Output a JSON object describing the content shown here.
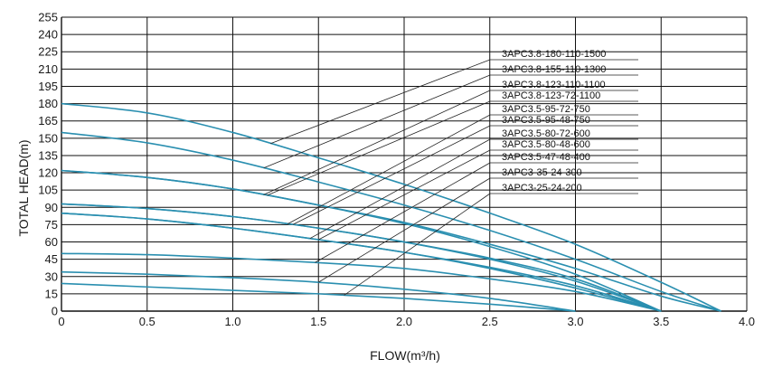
{
  "chart_data": {
    "type": "line",
    "title": "",
    "xlabel": "FLOW(m³/h)",
    "ylabel": "TOTAL HEAD(m)",
    "xlim": [
      0,
      4.0
    ],
    "ylim": [
      0,
      255
    ],
    "xticks": [
      "0",
      "0.5",
      "1.0",
      "1.5",
      "2.0",
      "2.5",
      "3.0",
      "3.5",
      "4.0"
    ],
    "yticks": [
      "0",
      "15",
      "30",
      "45",
      "60",
      "75",
      "90",
      "105",
      "120",
      "135",
      "150",
      "165",
      "180",
      "195",
      "210",
      "225",
      "240",
      "255"
    ],
    "grid": true,
    "line_color": "#2a8fb0",
    "series": [
      {
        "name": "3APC3.8-180-110-1500",
        "x": [
          0,
          0.5,
          1.0,
          1.5,
          2.0,
          2.5,
          3.0,
          3.5,
          3.85
        ],
        "y": [
          180,
          172,
          155,
          133,
          110,
          85,
          58,
          25,
          0
        ]
      },
      {
        "name": "3APC3.8-155-110-1300",
        "x": [
          0,
          0.5,
          1.0,
          1.5,
          2.0,
          2.5,
          3.0,
          3.5,
          3.85
        ],
        "y": [
          155,
          146,
          131,
          112,
          92,
          70,
          45,
          17,
          0
        ]
      },
      {
        "name": "3APC3.8-123-110-1100",
        "x": [
          0,
          0.5,
          1.0,
          1.5,
          2.0,
          2.5,
          3.0,
          3.5,
          3.85
        ],
        "y": [
          122,
          116,
          106,
          92,
          77,
          58,
          37,
          13,
          0
        ]
      },
      {
        "name": "3APC3.8-123-72-1100",
        "x": [
          0,
          0.5,
          1.0,
          1.5,
          2.0,
          2.5,
          3.0,
          3.5
        ],
        "y": [
          122,
          116,
          106,
          92,
          76,
          56,
          32,
          0
        ]
      },
      {
        "name": "3APC3.5-95-72-750",
        "x": [
          0,
          0.5,
          1.0,
          1.5,
          2.0,
          2.5,
          3.0,
          3.5
        ],
        "y": [
          93,
          89,
          82,
          72,
          60,
          46,
          28,
          0
        ]
      },
      {
        "name": "3APC3.5-95-48-750",
        "x": [
          0,
          0.5,
          1.0,
          1.5,
          2.0,
          2.5,
          3.0,
          3.5
        ],
        "y": [
          93,
          89,
          82,
          72,
          60,
          45,
          26,
          0
        ]
      },
      {
        "name": "3APC3.5-80-72-600",
        "x": [
          0,
          0.5,
          1.0,
          1.5,
          2.0,
          2.5,
          3.0,
          3.5
        ],
        "y": [
          85,
          80,
          72,
          62,
          51,
          38,
          22,
          0
        ]
      },
      {
        "name": "3APC3.5-80-48-600",
        "x": [
          0,
          0.5,
          1.0,
          1.5,
          2.0,
          2.5,
          3.0,
          3.5
        ],
        "y": [
          85,
          80,
          72,
          62,
          51,
          37,
          20,
          0
        ]
      },
      {
        "name": "3APC3.5-47-48-400",
        "x": [
          0,
          0.5,
          1.0,
          1.5,
          2.0,
          2.5,
          3.0,
          3.5
        ],
        "y": [
          50,
          49,
          46,
          42,
          37,
          28,
          17,
          0
        ]
      },
      {
        "name": "3APC3-35-24-300",
        "x": [
          0,
          0.5,
          1.0,
          1.5,
          2.0,
          2.5,
          3.0
        ],
        "y": [
          34,
          32,
          29,
          25,
          19,
          11,
          0
        ]
      },
      {
        "name": "3APC3-25-24-200",
        "x": [
          0,
          0.5,
          1.0,
          1.5,
          2.0,
          2.5,
          3.0
        ],
        "y": [
          24,
          21,
          18,
          15,
          11,
          6,
          0
        ]
      }
    ]
  }
}
